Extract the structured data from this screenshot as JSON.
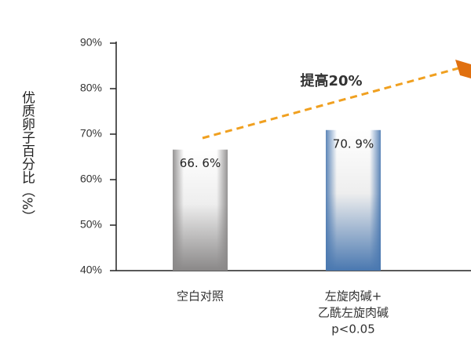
{
  "chart_data": {
    "type": "bar",
    "y_label": "优质卵子百分比（%）",
    "annotation": "提高20%",
    "categories": [
      [
        "空白对照"
      ],
      [
        "左旋肉碱+",
        "乙酰左旋肉碱",
        "p<0.05"
      ]
    ],
    "values": [
      66.6,
      70.9
    ],
    "value_labels": [
      "66. 6%",
      "70. 9%"
    ],
    "colors": [
      "#8a8888",
      "#4a78b0"
    ],
    "ylim": [
      40,
      90
    ],
    "yticks": [
      {
        "value": 40,
        "label": "40%"
      },
      {
        "value": 50,
        "label": "50%"
      },
      {
        "value": 60,
        "label": "60%"
      },
      {
        "value": 70,
        "label": "70%"
      },
      {
        "value": 80,
        "label": "80%"
      },
      {
        "value": 90,
        "label": "90%"
      }
    ]
  }
}
